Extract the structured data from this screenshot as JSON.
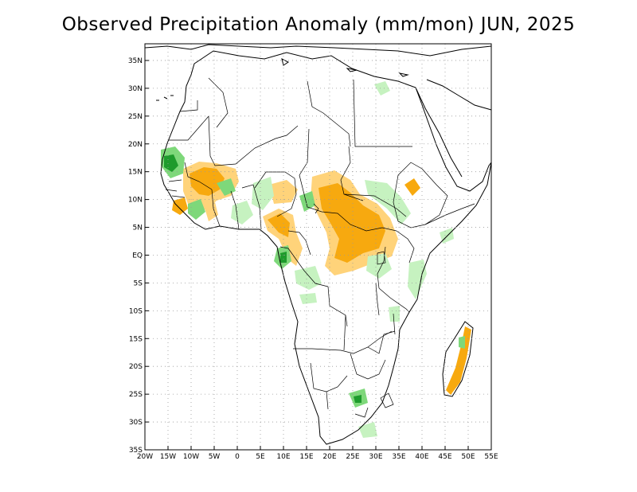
{
  "title": "Observed Precipitation Anomaly (mm/mon) JUN, 2025",
  "lon_labels": [
    "20W",
    "15W",
    "10W",
    "5W",
    "0",
    "5E",
    "10E",
    "15E",
    "20E",
    "25E",
    "30E",
    "35E",
    "40E",
    "45E",
    "50E",
    "55E"
  ],
  "lat_labels": [
    "35N",
    "30N",
    "25N",
    "20N",
    "15N",
    "10N",
    "5N",
    "EQ",
    "5S",
    "10S",
    "15S",
    "20S",
    "25S",
    "30S",
    "35S"
  ],
  "colors": {
    "dry_light": "#ffd37a",
    "dry": "#f7a90f",
    "wet_light": "#c6f2c0",
    "wet": "#7ed87a",
    "wet_dark": "#1e9b2c",
    "grid": "#999999",
    "coast": "#000000"
  },
  "map": {
    "lon_range": [
      -20,
      55
    ],
    "lat_range": [
      -35,
      38
    ],
    "grid_spacing_deg": 5,
    "grid_style": "dotted",
    "projection": "cylindrical equidistant"
  }
}
